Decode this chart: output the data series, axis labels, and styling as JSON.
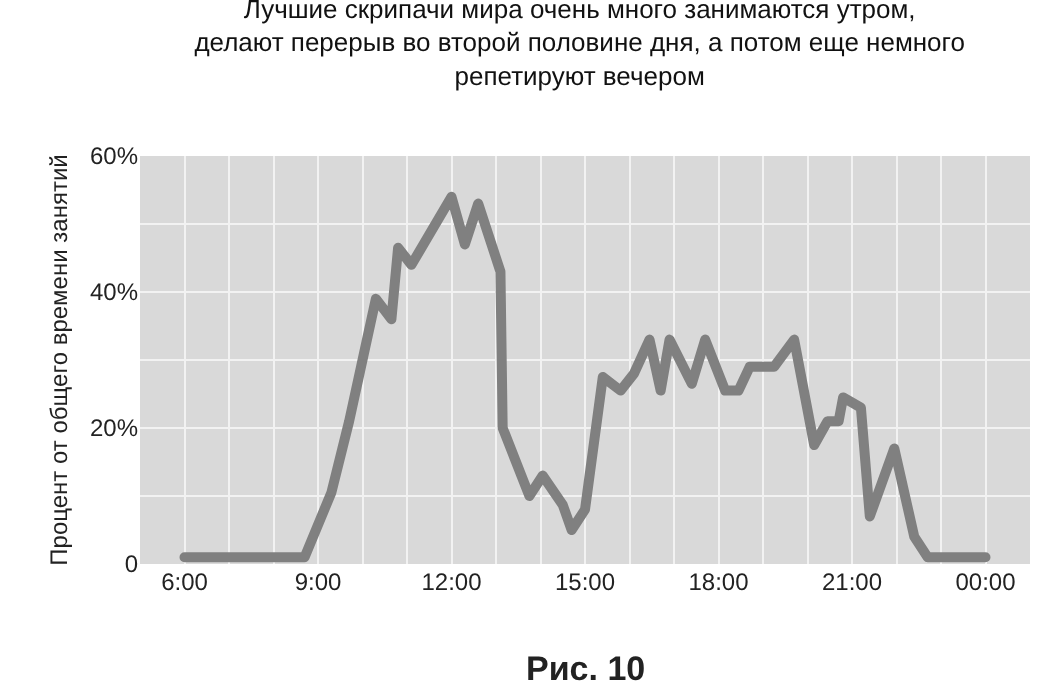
{
  "chart_data": {
    "type": "line",
    "title": "Лучшие скрипачи мира очень много занимаются утром,\nделают перерыв во второй половине дня, а потом еще немного\nрепетируют вечером",
    "ylabel": "Процент от общего времени занятий",
    "annotations": [
      "Рис. 10"
    ],
    "x": [
      6,
      8.7,
      9.3,
      9.7,
      10.3,
      10.65,
      10.8,
      11.1,
      12,
      12.3,
      12.6,
      13.1,
      13.15,
      13.75,
      14.05,
      14.5,
      14.7,
      15,
      15.4,
      15.8,
      16.1,
      16.45,
      16.7,
      16.9,
      17.4,
      17.7,
      18.15,
      18.45,
      18.7,
      19.25,
      19.7,
      20.15,
      20.45,
      20.7,
      20.8,
      21.2,
      21.4,
      21.95,
      22.4,
      22.7,
      24
    ],
    "series": [
      {
        "color": "#808080",
        "values": [
          1,
          1,
          10.5,
          21,
          39,
          36,
          46.5,
          44,
          54,
          47,
          53,
          43,
          20,
          10,
          13,
          8.7,
          5,
          8,
          27.5,
          25.5,
          28,
          33,
          25.5,
          33,
          26.5,
          33,
          25.5,
          25.5,
          29,
          29,
          33,
          17.5,
          21,
          21,
          24.5,
          23,
          7,
          17,
          4,
          1,
          1
        ]
      }
    ],
    "xlim": [
      5,
      25
    ],
    "ylim": [
      0,
      60
    ],
    "xticks": [
      {
        "value": 6,
        "label": "6:00"
      },
      {
        "value": 7,
        "label": null
      },
      {
        "value": 8,
        "label": null
      },
      {
        "value": 9,
        "label": "9:00"
      },
      {
        "value": 10,
        "label": null
      },
      {
        "value": 11,
        "label": null
      },
      {
        "value": 12,
        "label": "12:00"
      },
      {
        "value": 13,
        "label": null
      },
      {
        "value": 14,
        "label": null
      },
      {
        "value": 15,
        "label": "15:00"
      },
      {
        "value": 16,
        "label": null
      },
      {
        "value": 17,
        "label": null
      },
      {
        "value": 18,
        "label": "18:00"
      },
      {
        "value": 19,
        "label": null
      },
      {
        "value": 20,
        "label": null
      },
      {
        "value": 21,
        "label": "21:00"
      },
      {
        "value": 22,
        "label": null
      },
      {
        "value": 23,
        "label": null
      },
      {
        "value": 24,
        "label": "00:00"
      }
    ],
    "yticks": [
      0,
      {
        "value": 10,
        "label": null
      },
      {
        "value": 20,
        "label": "20%"
      },
      {
        "value": 30,
        "label": null
      },
      {
        "value": 40,
        "label": "40%"
      },
      {
        "value": 50,
        "label": null
      },
      {
        "value": 60,
        "label": "60%"
      }
    ],
    "grid": true,
    "marker": "none",
    "line_style": "solid"
  }
}
